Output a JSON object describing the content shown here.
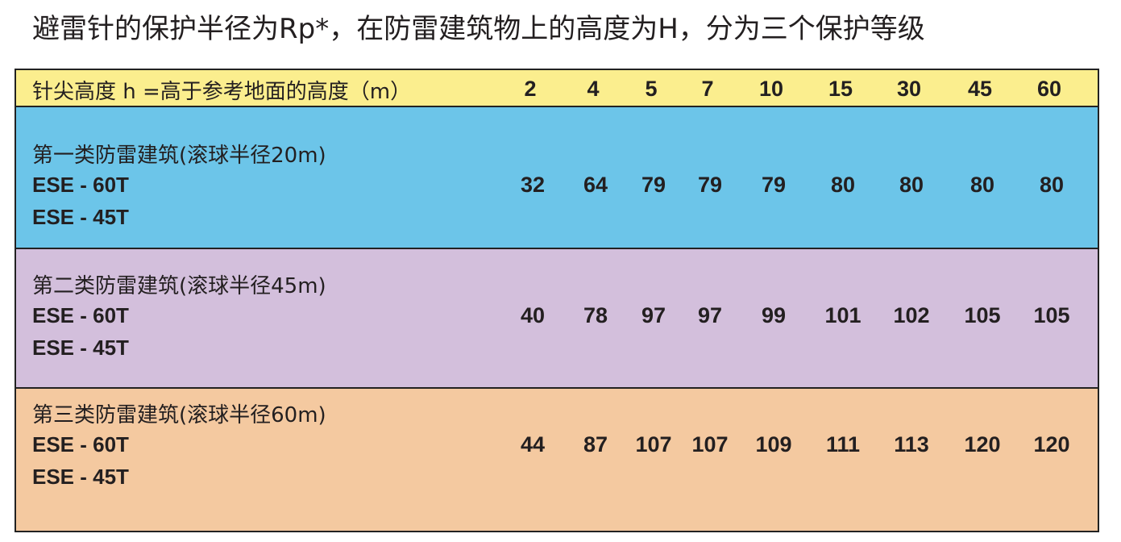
{
  "title": "避雷针的保护半径为Rp*，在防雷建筑物上的高度为H，分为三个保护等级",
  "table": {
    "header_label": "针尖高度 h =高于参考地面的高度（m）",
    "heights": [
      2,
      4,
      5,
      7,
      10,
      15,
      30,
      45,
      60
    ],
    "rows": [
      {
        "class": "第一类防雷建筑(滚球半径20m)",
        "models": [
          "ESE - 60T",
          "ESE - 45T"
        ],
        "values": [
          32,
          64,
          79,
          79,
          79,
          80,
          80,
          80,
          80
        ]
      },
      {
        "class": "第二类防雷建筑(滚球半径45m)",
        "models": [
          "ESE - 60T",
          "ESE - 45T"
        ],
        "values": [
          40,
          78,
          97,
          97,
          99,
          101,
          102,
          105,
          105
        ]
      },
      {
        "class": "第三类防雷建筑(滚球半径60m)",
        "models": [
          "ESE - 60T",
          "ESE - 45T"
        ],
        "values": [
          44,
          87,
          107,
          107,
          109,
          111,
          113,
          120,
          120
        ]
      }
    ]
  }
}
